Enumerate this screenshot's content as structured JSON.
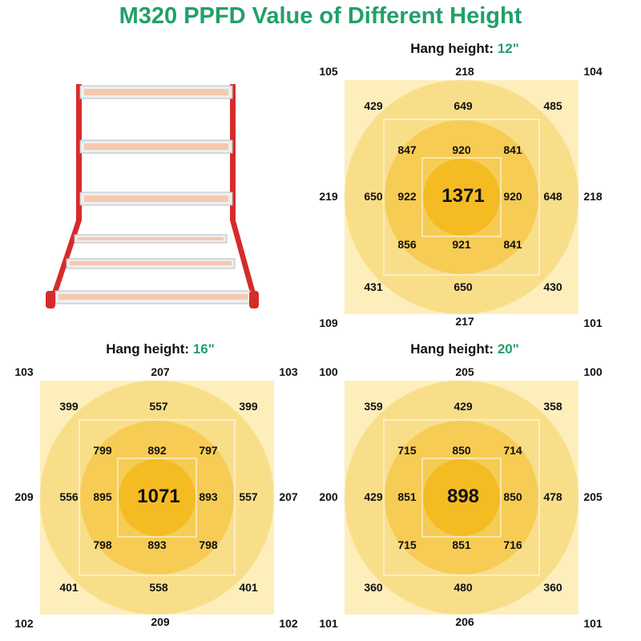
{
  "title": "M320 PPFD Value of Different Height",
  "heading_label": "Hang height:",
  "colors": {
    "title": "#21a06a",
    "square_bg": "#fdeebc",
    "ring_outer": "#f9de8a",
    "ring_middle": "#f7cc55",
    "ring_inner": "#f5bb22",
    "frame_red": "#d62b2b"
  },
  "product_image": {
    "icon": "grow-light-fixture-icon"
  },
  "panels": [
    {
      "height": "12\"",
      "corners": [
        "105",
        "218",
        "104",
        "219",
        "218",
        "109",
        "217",
        "101"
      ],
      "outer": [
        "429",
        "649",
        "485",
        "650",
        "648",
        "431",
        "650",
        "430"
      ],
      "inner": [
        "847",
        "920",
        "841",
        "922",
        "920",
        "856",
        "921",
        "841"
      ],
      "center": "1371"
    },
    {
      "height": "16\"",
      "corners": [
        "103",
        "207",
        "103",
        "209",
        "207",
        "102",
        "209",
        "102"
      ],
      "outer": [
        "399",
        "557",
        "399",
        "556",
        "557",
        "401",
        "558",
        "401"
      ],
      "inner": [
        "799",
        "892",
        "797",
        "895",
        "893",
        "798",
        "893",
        "798"
      ],
      "center": "1071"
    },
    {
      "height": "20\"",
      "corners": [
        "100",
        "205",
        "100",
        "200",
        "205",
        "101",
        "206",
        "101"
      ],
      "outer": [
        "359",
        "429",
        "358",
        "429",
        "478",
        "360",
        "480",
        "360"
      ],
      "inner": [
        "715",
        "850",
        "714",
        "851",
        "850",
        "715",
        "851",
        "716"
      ],
      "center": "898"
    }
  ]
}
